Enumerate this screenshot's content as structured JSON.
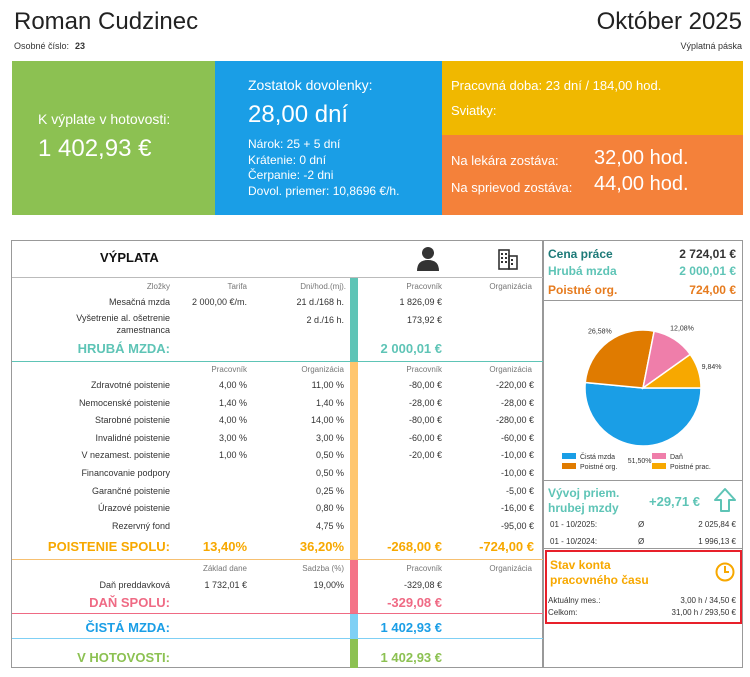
{
  "header": {
    "name": "Roman Cudzinec",
    "period": "Október 2025",
    "emp_label": "Osobné číslo:",
    "emp_no": "23",
    "doc_type": "Výplatná páska"
  },
  "tiles": {
    "cash": {
      "label": "K výplate v hotovosti:",
      "value": "1 402,93 €"
    },
    "vacation": {
      "label": "Zostatok dovolenky:",
      "value": "28,00 dní",
      "lines": [
        "Nárok: 25 + 5 dní",
        "Krátenie: 0 dní",
        "Čerpanie: -2 dni",
        "Dovol. priemer: 10,8696 €/h."
      ]
    },
    "work": {
      "line1": "Pracovná doba: 23 dní / 184,00 hod.",
      "line2": "Sviatky:"
    },
    "doctor": {
      "label1": "Na lekára zostáva:",
      "value1": "32,00 hod.",
      "label2": "Na sprievod zostáva:",
      "value2": "44,00 hod."
    }
  },
  "payslip": {
    "title": "VÝPLATA",
    "h1": {
      "c1": "Zložky",
      "c2": "Tarifa",
      "c3": "Dni/hod.(mj).",
      "c4": "Pracovník",
      "c5": "Organizácia"
    },
    "earn": [
      {
        "name": "Mesačná mzda",
        "tarif": "2 000,00 €/m.",
        "days": "21 d./168 h.",
        "emp": "1 826,09 €"
      },
      {
        "name": "Vyšetrenie al. ošetrenie",
        "name2": "zamestnanca",
        "tarif": "",
        "days": "2 d./16 h.",
        "emp": "173,92 €"
      }
    ],
    "gross_label": "HRUBÁ MZDA:",
    "gross_value": "2 000,01 €",
    "h2": {
      "c2": "Pracovník",
      "c3": "Organizácia",
      "c4": "Pracovník",
      "c5": "Organizácia"
    },
    "ins": [
      {
        "name": "Zdravotné poistenie",
        "p1": "4,00 %",
        "p2": "11,00 %",
        "v1": "-80,00 €",
        "v2": "-220,00 €"
      },
      {
        "name": "Nemocenské poistenie",
        "p1": "1,40 %",
        "p2": "1,40 %",
        "v1": "-28,00 €",
        "v2": "-28,00 €"
      },
      {
        "name": "Starobné poistenie",
        "p1": "4,00 %",
        "p2": "14,00 %",
        "v1": "-80,00 €",
        "v2": "-280,00 €"
      },
      {
        "name": "Invalidné poistenie",
        "p1": "3,00 %",
        "p2": "3,00 %",
        "v1": "-60,00 €",
        "v2": "-60,00 €"
      },
      {
        "name": "V nezamest. poistenie",
        "p1": "1,00 %",
        "p2": "0,50 %",
        "v1": "-20,00 €",
        "v2": "-10,00 €"
      },
      {
        "name": "Financovanie podpory",
        "p1": "",
        "p2": "0,50 %",
        "v1": "",
        "v2": "-10,00 €"
      },
      {
        "name": "Garančné poistenie",
        "p1": "",
        "p2": "0,25 %",
        "v1": "",
        "v2": "-5,00 €"
      },
      {
        "name": "Úrazové poistenie",
        "p1": "",
        "p2": "0,80 %",
        "v1": "",
        "v2": "-16,00 €"
      },
      {
        "name": "Rezervný fond",
        "p1": "",
        "p2": "4,75 %",
        "v1": "",
        "v2": "-95,00 €"
      }
    ],
    "ins_total": {
      "label": "POISTENIE SPOLU:",
      "p1": "13,40%",
      "p2": "36,20%",
      "v1": "-268,00 €",
      "v2": "-724,00 €"
    },
    "h3": {
      "c2": "Základ dane",
      "c3": "Sadzba (%)",
      "c4": "Pracovník",
      "c5": "Organizácia"
    },
    "tax": {
      "name": "Daň preddavková",
      "base": "1 732,01 €",
      "rate": "19,00%",
      "value": "-329,08 €"
    },
    "tax_total": {
      "label": "DAŇ SPOLU:",
      "value": "-329,08 €"
    },
    "net": {
      "label": "ČISTÁ MZDA:",
      "value": "1 402,93 €"
    },
    "cash": {
      "label": "V HOTOVOSTI:",
      "value": "1 402,93 €"
    }
  },
  "side": {
    "cost_label": "Cena práce",
    "cost_value": "2 724,01 €",
    "gross_label": "Hrubá mzda",
    "gross_value": "2 000,01 €",
    "ins_label": "Poistné org.",
    "ins_value": "724,00 €",
    "trend_title1": "Vývoj priem.",
    "trend_title2": "hrubej mzdy",
    "trend_value": "+29,71 €",
    "trend_rows": [
      {
        "period": "01 - 10/2025:",
        "sym": "Ø",
        "value": "2 025,84 €"
      },
      {
        "period": "01 - 10/2024:",
        "sym": "Ø",
        "value": "1 996,13 €"
      }
    ],
    "acct_title1": "Stav konta",
    "acct_title2": "pracovného času",
    "acct_rows": [
      {
        "label": "Aktuálny mes.:",
        "value": "3,00 h / 34,50 €"
      },
      {
        "label": "Celkom:",
        "value": "31,00 h / 293,50 €"
      }
    ]
  },
  "chart_data": {
    "type": "pie",
    "labels": [
      "Čistá mzda",
      "Poistné org.",
      "Daň",
      "Poistné prac."
    ],
    "values": [
      51.5,
      26.58,
      12.08,
      9.84
    ],
    "value_labels": [
      "51,50%",
      "26,58%",
      "12,08%",
      "9,84%"
    ],
    "colors": [
      "#1a9ee6",
      "#e07b00",
      "#ef7eaa",
      "#f7a800"
    ],
    "legend": "bottom"
  }
}
